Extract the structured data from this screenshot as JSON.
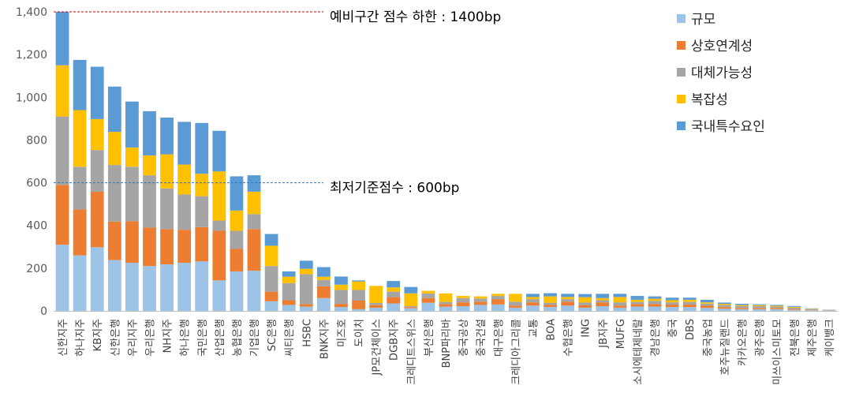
{
  "chart_data": {
    "type": "bar",
    "stacked": true,
    "categories": [
      "신한지주",
      "하나지주",
      "KB지주",
      "신한은행",
      "우리지주",
      "우리은행",
      "NH지주",
      "하나은행",
      "국민은행",
      "산업은행",
      "농협은행",
      "기업은행",
      "SC은행",
      "씨티은행",
      "HSBC",
      "BNK지주",
      "미즈호",
      "도이치",
      "JP모건체이스",
      "DGB지주",
      "크레디트스위스",
      "부산은행",
      "BNP파리바",
      "중국공상",
      "중국건설",
      "대구은행",
      "크레디아그리콜",
      "교통",
      "BOA",
      "수협은행",
      "ING",
      "JB지주",
      "MUFG",
      "소시에테제네랄",
      "경남은행",
      "중국",
      "DBS",
      "중국농업",
      "호주뉴질랜드",
      "카카오은행",
      "광주은행",
      "미쓰이스미토모",
      "전북은행",
      "제주은행",
      "케이뱅크"
    ],
    "series": [
      {
        "name": "규모",
        "color": "#9DC3E6",
        "values": [
          310,
          260,
          298,
          238,
          225,
          210,
          218,
          225,
          232,
          143,
          185,
          188,
          45,
          28,
          20,
          60,
          18,
          8,
          15,
          35,
          12,
          38,
          20,
          22,
          28,
          30,
          15,
          25,
          18,
          25,
          15,
          22,
          15,
          20,
          20,
          18,
          18,
          14,
          10,
          8,
          8,
          8,
          5,
          3,
          2
        ]
      },
      {
        "name": "상호연계성",
        "color": "#ED7D31",
        "values": [
          280,
          215,
          260,
          180,
          195,
          180,
          165,
          155,
          160,
          232,
          105,
          195,
          45,
          22,
          12,
          55,
          15,
          40,
          12,
          30,
          5,
          22,
          12,
          18,
          15,
          25,
          10,
          15,
          10,
          18,
          12,
          18,
          10,
          12,
          12,
          12,
          12,
          10,
          8,
          6,
          6,
          6,
          4,
          2,
          1
        ]
      },
      {
        "name": "대체가능성",
        "color": "#A5A5A5",
        "values": [
          320,
          200,
          195,
          265,
          255,
          245,
          190,
          165,
          145,
          48,
          85,
          70,
          120,
          80,
          140,
          30,
          65,
          50,
          10,
          25,
          5,
          22,
          10,
          20,
          15,
          15,
          18,
          15,
          10,
          12,
          12,
          10,
          15,
          10,
          15,
          10,
          12,
          10,
          10,
          8,
          8,
          6,
          6,
          3,
          1
        ]
      },
      {
        "name": "복잡성",
        "color": "#FFC000",
        "values": [
          240,
          265,
          145,
          155,
          90,
          93,
          160,
          140,
          105,
          230,
          95,
          105,
          95,
          30,
          25,
          15,
          25,
          40,
          80,
          20,
          60,
          12,
          40,
          10,
          10,
          10,
          37,
          10,
          30,
          10,
          25,
          10,
          25,
          10,
          10,
          10,
          10,
          6,
          5,
          5,
          5,
          4,
          4,
          2,
          1
        ]
      },
      {
        "name": "국내특수요인",
        "color": "#5B9BD5",
        "values": [
          250,
          235,
          245,
          212,
          215,
          207,
          172,
          200,
          238,
          190,
          160,
          77,
          55,
          25,
          38,
          45,
          38,
          5,
          0,
          30,
          30,
          0,
          0,
          0,
          0,
          0,
          0,
          15,
          15,
          15,
          15,
          20,
          15,
          18,
          11,
          12,
          10,
          12,
          6,
          6,
          4,
          4,
          4,
          2,
          1
        ]
      }
    ],
    "ylim": [
      0,
      1400
    ],
    "yticks": [
      0,
      200,
      400,
      600,
      800,
      1000,
      1200,
      1400
    ],
    "ytick_labels": [
      "0",
      "200",
      "400",
      "600",
      "800",
      "1,000",
      "1,200",
      "1,400"
    ],
    "reference_lines": [
      {
        "value": 1400,
        "label": "예비구간 점수 하한 : 1400bp",
        "color": "#C00000",
        "style": "dashed"
      },
      {
        "value": 600,
        "label": "최저기준점수 : 600bp",
        "color": "#2E75B6",
        "style": "dashed"
      }
    ],
    "legend_position": "top-right",
    "grid": false
  }
}
